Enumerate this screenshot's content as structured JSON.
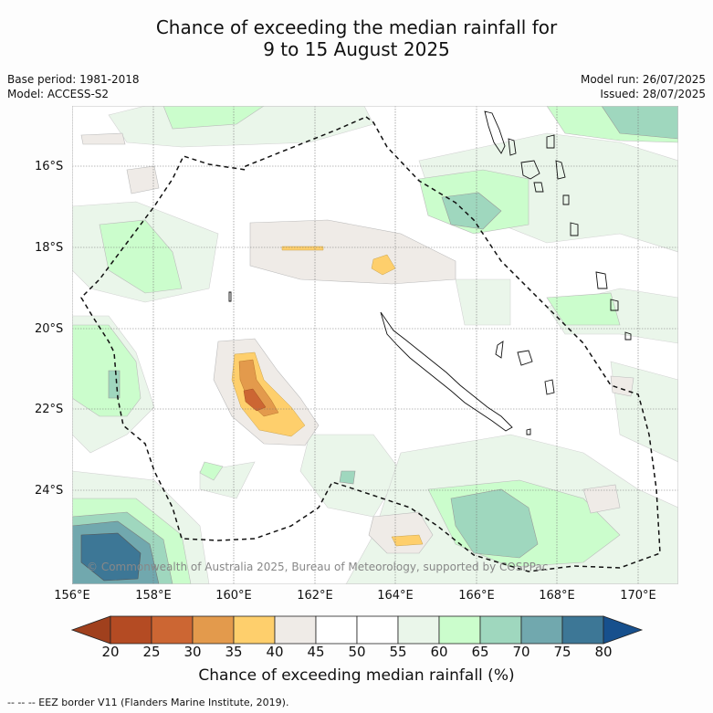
{
  "title": {
    "line1": "Chance of exceeding the median rainfall for",
    "line2": "9 to 15 August 2025"
  },
  "meta": {
    "base_period": "Base period: 1981-2018",
    "model": "Model: ACCESS-S2",
    "model_run": "Model run: 26/07/2025",
    "issued": "Issued: 28/07/2025"
  },
  "map": {
    "lat_labels": [
      "16°S",
      "18°S",
      "20°S",
      "22°S",
      "24°S"
    ],
    "lon_labels": [
      "156°E",
      "158°E",
      "160°E",
      "162°E",
      "164°E",
      "166°E",
      "168°E",
      "170°E"
    ],
    "copyright": "© Commonwealth of Australia 2025, Bureau of Meteorology, supported by COSPPac",
    "eez_legend": "-- -- -- EEZ border V11 (Flanders Marine Institute, 2019)."
  },
  "colorbar": {
    "ticks": [
      "20",
      "25",
      "30",
      "35",
      "40",
      "45",
      "50",
      "55",
      "60",
      "65",
      "70",
      "75",
      "80"
    ],
    "colors": [
      "#a0401d",
      "#b44b23",
      "#cc6633",
      "#e39a4c",
      "#fecf6c",
      "#efebe7",
      "#ffffff",
      "#ffffff",
      "#eaf6ea",
      "#cbfdcc",
      "#9fd7be",
      "#71a8ae",
      "#3d7796",
      "#17508d"
    ],
    "title": "Chance of exceeding median rainfall (%)"
  }
}
